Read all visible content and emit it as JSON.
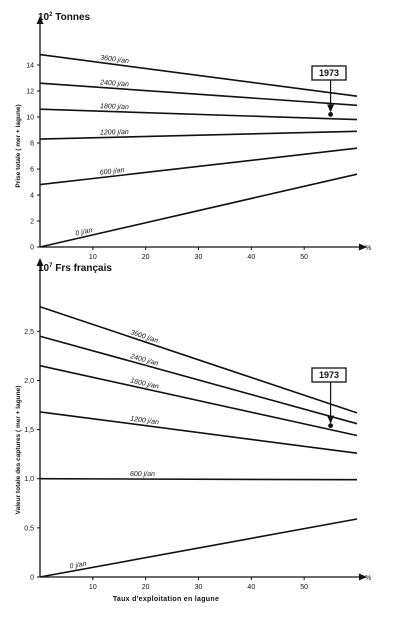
{
  "chart_data": [
    {
      "type": "line",
      "unit_prefix": "10",
      "unit_exponent": "2",
      "unit_name": "Tonnes",
      "ylabel": "Prise totale ( mer + lagune)",
      "xlabel": "",
      "x_unit": "%",
      "xlim": [
        0,
        60
      ],
      "ylim": [
        0,
        16
      ],
      "x_ticks": [
        10,
        20,
        30,
        40,
        50
      ],
      "y_ticks": [
        0,
        2,
        4,
        6,
        8,
        10,
        12,
        14
      ],
      "series": [
        {
          "name": "3600 j/an",
          "x": [
            0,
            60
          ],
          "y": [
            14.8,
            11.6
          ]
        },
        {
          "name": "2400 j/an",
          "x": [
            0,
            60
          ],
          "y": [
            12.6,
            10.9
          ]
        },
        {
          "name": "1800 j/an",
          "x": [
            0,
            60
          ],
          "y": [
            10.6,
            9.8
          ]
        },
        {
          "name": "1200 j/an",
          "x": [
            0,
            60
          ],
          "y": [
            8.3,
            8.9
          ]
        },
        {
          "name": "600 j/an",
          "x": [
            0,
            60
          ],
          "y": [
            4.8,
            7.6
          ]
        },
        {
          "name": "0 j/an",
          "x": [
            0,
            60
          ],
          "y": [
            0.0,
            5.6
          ]
        }
      ],
      "annotation": {
        "label": "1973",
        "x": 55,
        "y": 10.2
      }
    },
    {
      "type": "line",
      "unit_prefix": "10",
      "unit_exponent": "7",
      "unit_name": "Frs français",
      "ylabel": "Valeur totale des captures ( mer + lagune)",
      "xlabel": "Taux d'exploitation en lagune",
      "x_unit": "%",
      "xlim": [
        0,
        60
      ],
      "ylim": [
        0,
        2.9
      ],
      "x_ticks": [
        10,
        20,
        30,
        40,
        50
      ],
      "y_ticks": [
        0,
        0.5,
        1.0,
        1.5,
        2.0,
        2.5
      ],
      "y_tick_labels": [
        "0",
        "0,5",
        "1,0",
        "1,5",
        "2,0",
        "2,5"
      ],
      "series": [
        {
          "name": "3600 j/an",
          "x": [
            0,
            60
          ],
          "y": [
            2.75,
            1.67
          ]
        },
        {
          "name": "2400 j/an",
          "x": [
            0,
            60
          ],
          "y": [
            2.45,
            1.56
          ]
        },
        {
          "name": "1800 j/an",
          "x": [
            0,
            60
          ],
          "y": [
            2.15,
            1.44
          ]
        },
        {
          "name": "1200 j/an",
          "x": [
            0,
            60
          ],
          "y": [
            1.68,
            1.26
          ]
        },
        {
          "name": "600 j/an",
          "x": [
            0,
            60
          ],
          "y": [
            1.0,
            0.99
          ]
        },
        {
          "name": "0 j/an",
          "x": [
            0,
            60
          ],
          "y": [
            0.0,
            0.59
          ]
        }
      ],
      "annotation": {
        "label": "1973",
        "x": 55,
        "y": 1.54
      }
    }
  ]
}
